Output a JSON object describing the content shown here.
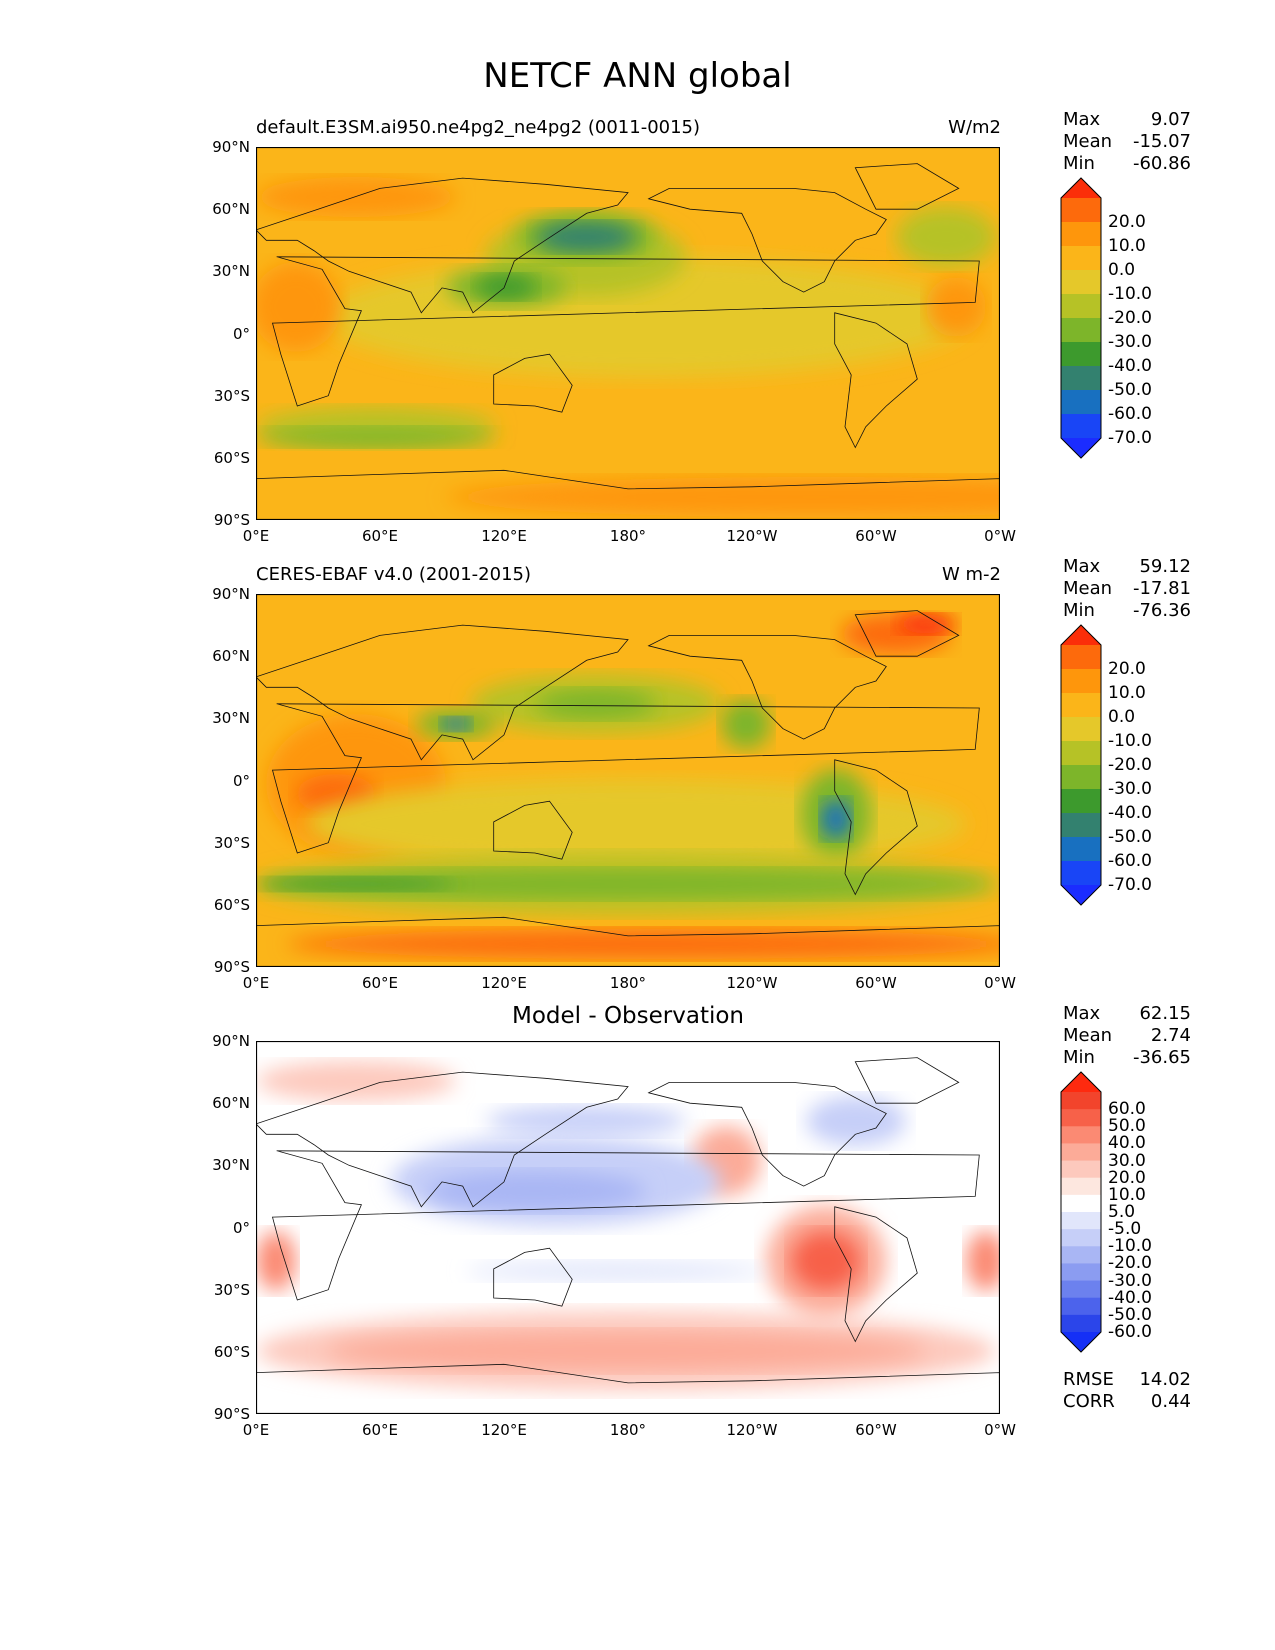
{
  "figure_title": "NETCF ANN global",
  "panels": [
    {
      "title_left": "default.E3SM.ai950.ne4pg2_ne4pg2 (0011-0015)",
      "title_right": "W/m2",
      "title_center": "",
      "stats": {
        "max_label": "Max",
        "max": "9.07",
        "mean_label": "Mean",
        "mean": "-15.07",
        "min_label": "Min",
        "min": "-60.86"
      },
      "colorbar": {
        "labels": [
          "20.0",
          "10.0",
          "0.0",
          "-10.0",
          "-20.0",
          "-30.0",
          "-40.0",
          "-50.0",
          "-60.0",
          "-70.0"
        ],
        "colors": [
          "#fb2e09",
          "#fd6a0c",
          "#fe960c",
          "#fbb519",
          "#e5c82a",
          "#b6c226",
          "#7db52a",
          "#3d9a2d",
          "#33816f",
          "#1870c0",
          "#1945f6",
          "#1b2cff"
        ]
      }
    },
    {
      "title_left": "CERES-EBAF v4.0 (2001-2015)",
      "title_right": "W m-2",
      "title_center": "",
      "stats": {
        "max_label": "Max",
        "max": "59.12",
        "mean_label": "Mean",
        "mean": "-17.81",
        "min_label": "Min",
        "min": "-76.36"
      },
      "colorbar": {
        "labels": [
          "20.0",
          "10.0",
          "0.0",
          "-10.0",
          "-20.0",
          "-30.0",
          "-40.0",
          "-50.0",
          "-60.0",
          "-70.0"
        ],
        "colors": [
          "#fb2e09",
          "#fd6a0c",
          "#fe960c",
          "#fbb519",
          "#e5c82a",
          "#b6c226",
          "#7db52a",
          "#3d9a2d",
          "#33816f",
          "#1870c0",
          "#1945f6",
          "#1b2cff"
        ]
      }
    },
    {
      "title_left": "",
      "title_right": "",
      "title_center": "Model - Observation",
      "stats": {
        "max_label": "Max",
        "max": "62.15",
        "mean_label": "Mean",
        "mean": "2.74",
        "min_label": "Min",
        "min": "-36.65"
      },
      "colorbar": {
        "labels": [
          "60.0",
          "50.0",
          "40.0",
          "30.0",
          "20.0",
          "10.0",
          "5.0",
          "-5.0",
          "-10.0",
          "-20.0",
          "-30.0",
          "-40.0",
          "-50.0",
          "-60.0"
        ],
        "colors": [
          "#fe2a0f",
          "#f2442c",
          "#f76149",
          "#fb8a73",
          "#fcab98",
          "#fdc9bd",
          "#fde7df",
          "#ffffff",
          "#e1e6fb",
          "#c6cff8",
          "#a9b6f4",
          "#8b9cf1",
          "#6c81ee",
          "#4c63ec",
          "#2b45ea",
          "#1530f6"
        ]
      },
      "rmse_label": "RMSE",
      "rmse": "14.02",
      "corr_label": "CORR",
      "corr": "0.44"
    }
  ],
  "axes": {
    "yticks": [
      "90°N",
      "60°N",
      "30°N",
      "0°",
      "30°S",
      "60°S",
      "90°S"
    ],
    "xticks": [
      "0°E",
      "60°E",
      "120°E",
      "180°",
      "120°W",
      "60°W",
      "0°W"
    ]
  },
  "chart_data": [
    {
      "type": "heatmap",
      "title": "default.E3SM.ai950.ne4pg2_ne4pg2 (0011-0015)",
      "units": "W/m2",
      "xlim": [
        0,
        360
      ],
      "ylim": [
        -90,
        90
      ],
      "max": 9.07,
      "mean": -15.07,
      "min": -60.86,
      "levels": [
        -70,
        -60,
        -50,
        -40,
        -30,
        -20,
        -10,
        0,
        10,
        20
      ]
    },
    {
      "type": "heatmap",
      "title": "CERES-EBAF v4.0 (2001-2015)",
      "units": "W m-2",
      "xlim": [
        0,
        360
      ],
      "ylim": [
        -90,
        90
      ],
      "max": 59.12,
      "mean": -17.81,
      "min": -76.36,
      "levels": [
        -70,
        -60,
        -50,
        -40,
        -30,
        -20,
        -10,
        0,
        10,
        20
      ]
    },
    {
      "type": "heatmap",
      "title": "Model - Observation",
      "xlim": [
        0,
        360
      ],
      "ylim": [
        -90,
        90
      ],
      "max": 62.15,
      "mean": 2.74,
      "min": -36.65,
      "rmse": 14.02,
      "corr": 0.44,
      "levels": [
        -60,
        -50,
        -40,
        -30,
        -20,
        -10,
        -5,
        5,
        10,
        20,
        30,
        40,
        50,
        60
      ]
    }
  ]
}
